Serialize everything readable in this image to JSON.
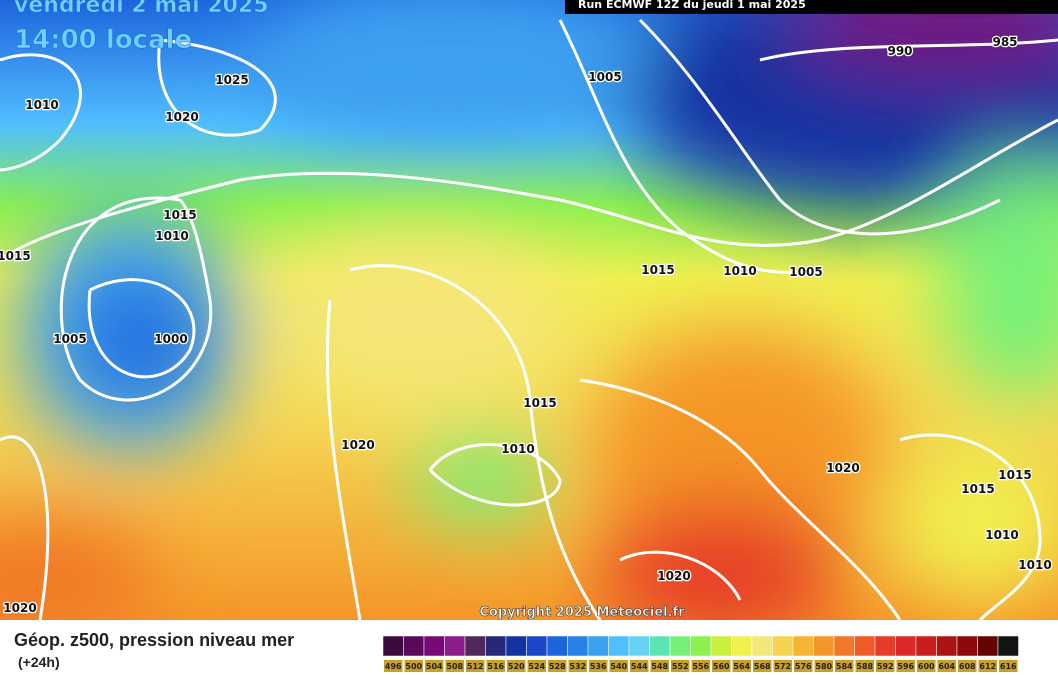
{
  "header": {
    "date": "vendredi 2 mai 2025",
    "time": "14:00 locale",
    "run": "Run ECMWF 12Z du jeudi 1 mai 2025"
  },
  "isobar_labels": [
    "1010",
    "1025",
    "1020",
    "1015",
    "1010",
    "1015",
    "1005",
    "1000",
    "1020",
    "1020",
    "1005",
    "990",
    "985",
    "1015",
    "1010",
    "1005",
    "1015",
    "1010",
    "1020",
    "1015",
    "1015",
    "1010",
    "1010",
    "1020"
  ],
  "copyright": "Copyright 2025 Meteociel.fr",
  "footer": {
    "title": "Géop. z500, pression niveau mer",
    "lead": "(+24h)"
  },
  "color_scale": {
    "labels": [
      496,
      500,
      504,
      508,
      512,
      516,
      520,
      524,
      528,
      532,
      536,
      540,
      544,
      548,
      552,
      556,
      560,
      564,
      568,
      572,
      576,
      580,
      584,
      588,
      592,
      596,
      600,
      604,
      608,
      612,
      616
    ],
    "colors": [
      "#3c0a3c",
      "#5a0a5a",
      "#780a78",
      "#8c1e8c",
      "#50285a",
      "#28287a",
      "#1432a0",
      "#1e46c8",
      "#1e64dc",
      "#2882e6",
      "#3ca0f0",
      "#50beff",
      "#64d2f0",
      "#5ae6b4",
      "#78f078",
      "#8cf050",
      "#c8f03c",
      "#f0f050",
      "#f5e678",
      "#f5d250",
      "#f5b432",
      "#f59628",
      "#f07828",
      "#f05a28",
      "#e63c28",
      "#dc2828",
      "#c81e1e",
      "#aa1414",
      "#8c0a0a",
      "#640505",
      "#141414"
    ]
  }
}
